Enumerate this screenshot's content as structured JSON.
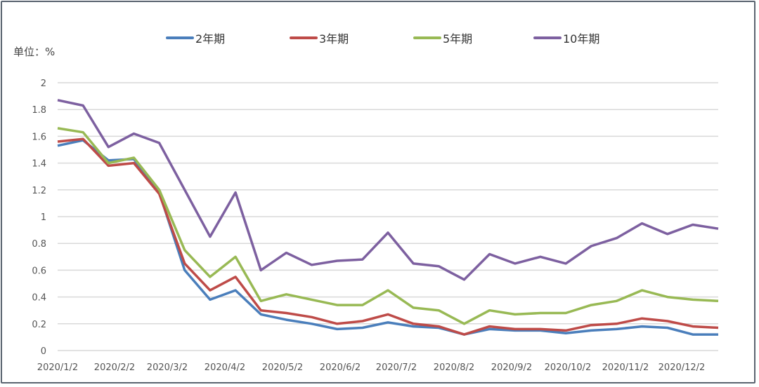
{
  "chart_data": {
    "type": "line",
    "title": "",
    "unit_label": "单位：%",
    "xlabel": "",
    "ylabel": "%",
    "ylim": [
      0,
      2
    ],
    "yticks": [
      "0",
      "0.2",
      "0.4",
      "0.6",
      "0.8",
      "1",
      "1.2",
      "1.4",
      "1.6",
      "1.8",
      "2"
    ],
    "xticks": [
      "2020/1/2",
      "2020/2/2",
      "2020/3/2",
      "2020/4/2",
      "2020/5/2",
      "2020/6/2",
      "2020/7/2",
      "2020/8/2",
      "2020/9/2",
      "2020/10/2",
      "2020/11/2",
      "2020/12/2"
    ],
    "grid": true,
    "legend_position": "top",
    "x": [
      "2020/1/2",
      "2020/1/15",
      "2020/2/2",
      "2020/2/15",
      "2020/3/2",
      "2020/3/10",
      "2020/3/18",
      "2020/3/25",
      "2020/4/2",
      "2020/4/15",
      "2020/5/2",
      "2020/5/15",
      "2020/6/2",
      "2020/6/15",
      "2020/7/2",
      "2020/7/15",
      "2020/8/2",
      "2020/8/15",
      "2020/9/2",
      "2020/9/15",
      "2020/10/2",
      "2020/10/15",
      "2020/11/2",
      "2020/11/15",
      "2020/12/2",
      "2020/12/15",
      "2020/12/31"
    ],
    "series": [
      {
        "name": "2年期",
        "color": "#4a7ebb",
        "values": [
          1.53,
          1.57,
          1.42,
          1.43,
          1.18,
          0.6,
          0.38,
          0.45,
          0.27,
          0.23,
          0.2,
          0.16,
          0.17,
          0.21,
          0.18,
          0.17,
          0.12,
          0.16,
          0.15,
          0.15,
          0.13,
          0.15,
          0.16,
          0.18,
          0.17,
          0.12,
          0.12
        ]
      },
      {
        "name": "3年期",
        "color": "#be4b48",
        "values": [
          1.56,
          1.58,
          1.38,
          1.4,
          1.17,
          0.65,
          0.45,
          0.55,
          0.3,
          0.28,
          0.25,
          0.2,
          0.22,
          0.27,
          0.2,
          0.18,
          0.12,
          0.18,
          0.16,
          0.16,
          0.15,
          0.19,
          0.2,
          0.24,
          0.22,
          0.18,
          0.17
        ]
      },
      {
        "name": "5年期",
        "color": "#98b954",
        "values": [
          1.66,
          1.63,
          1.4,
          1.44,
          1.2,
          0.75,
          0.55,
          0.7,
          0.37,
          0.42,
          0.38,
          0.34,
          0.34,
          0.45,
          0.32,
          0.3,
          0.2,
          0.3,
          0.27,
          0.28,
          0.28,
          0.34,
          0.37,
          0.45,
          0.4,
          0.38,
          0.37
        ]
      },
      {
        "name": "10年期",
        "color": "#7d60a0",
        "values": [
          1.87,
          1.83,
          1.52,
          1.62,
          1.55,
          1.2,
          0.85,
          1.18,
          0.6,
          0.73,
          0.64,
          0.67,
          0.68,
          0.88,
          0.65,
          0.63,
          0.53,
          0.72,
          0.65,
          0.7,
          0.65,
          0.78,
          0.84,
          0.95,
          0.87,
          0.94,
          0.91
        ]
      }
    ]
  }
}
